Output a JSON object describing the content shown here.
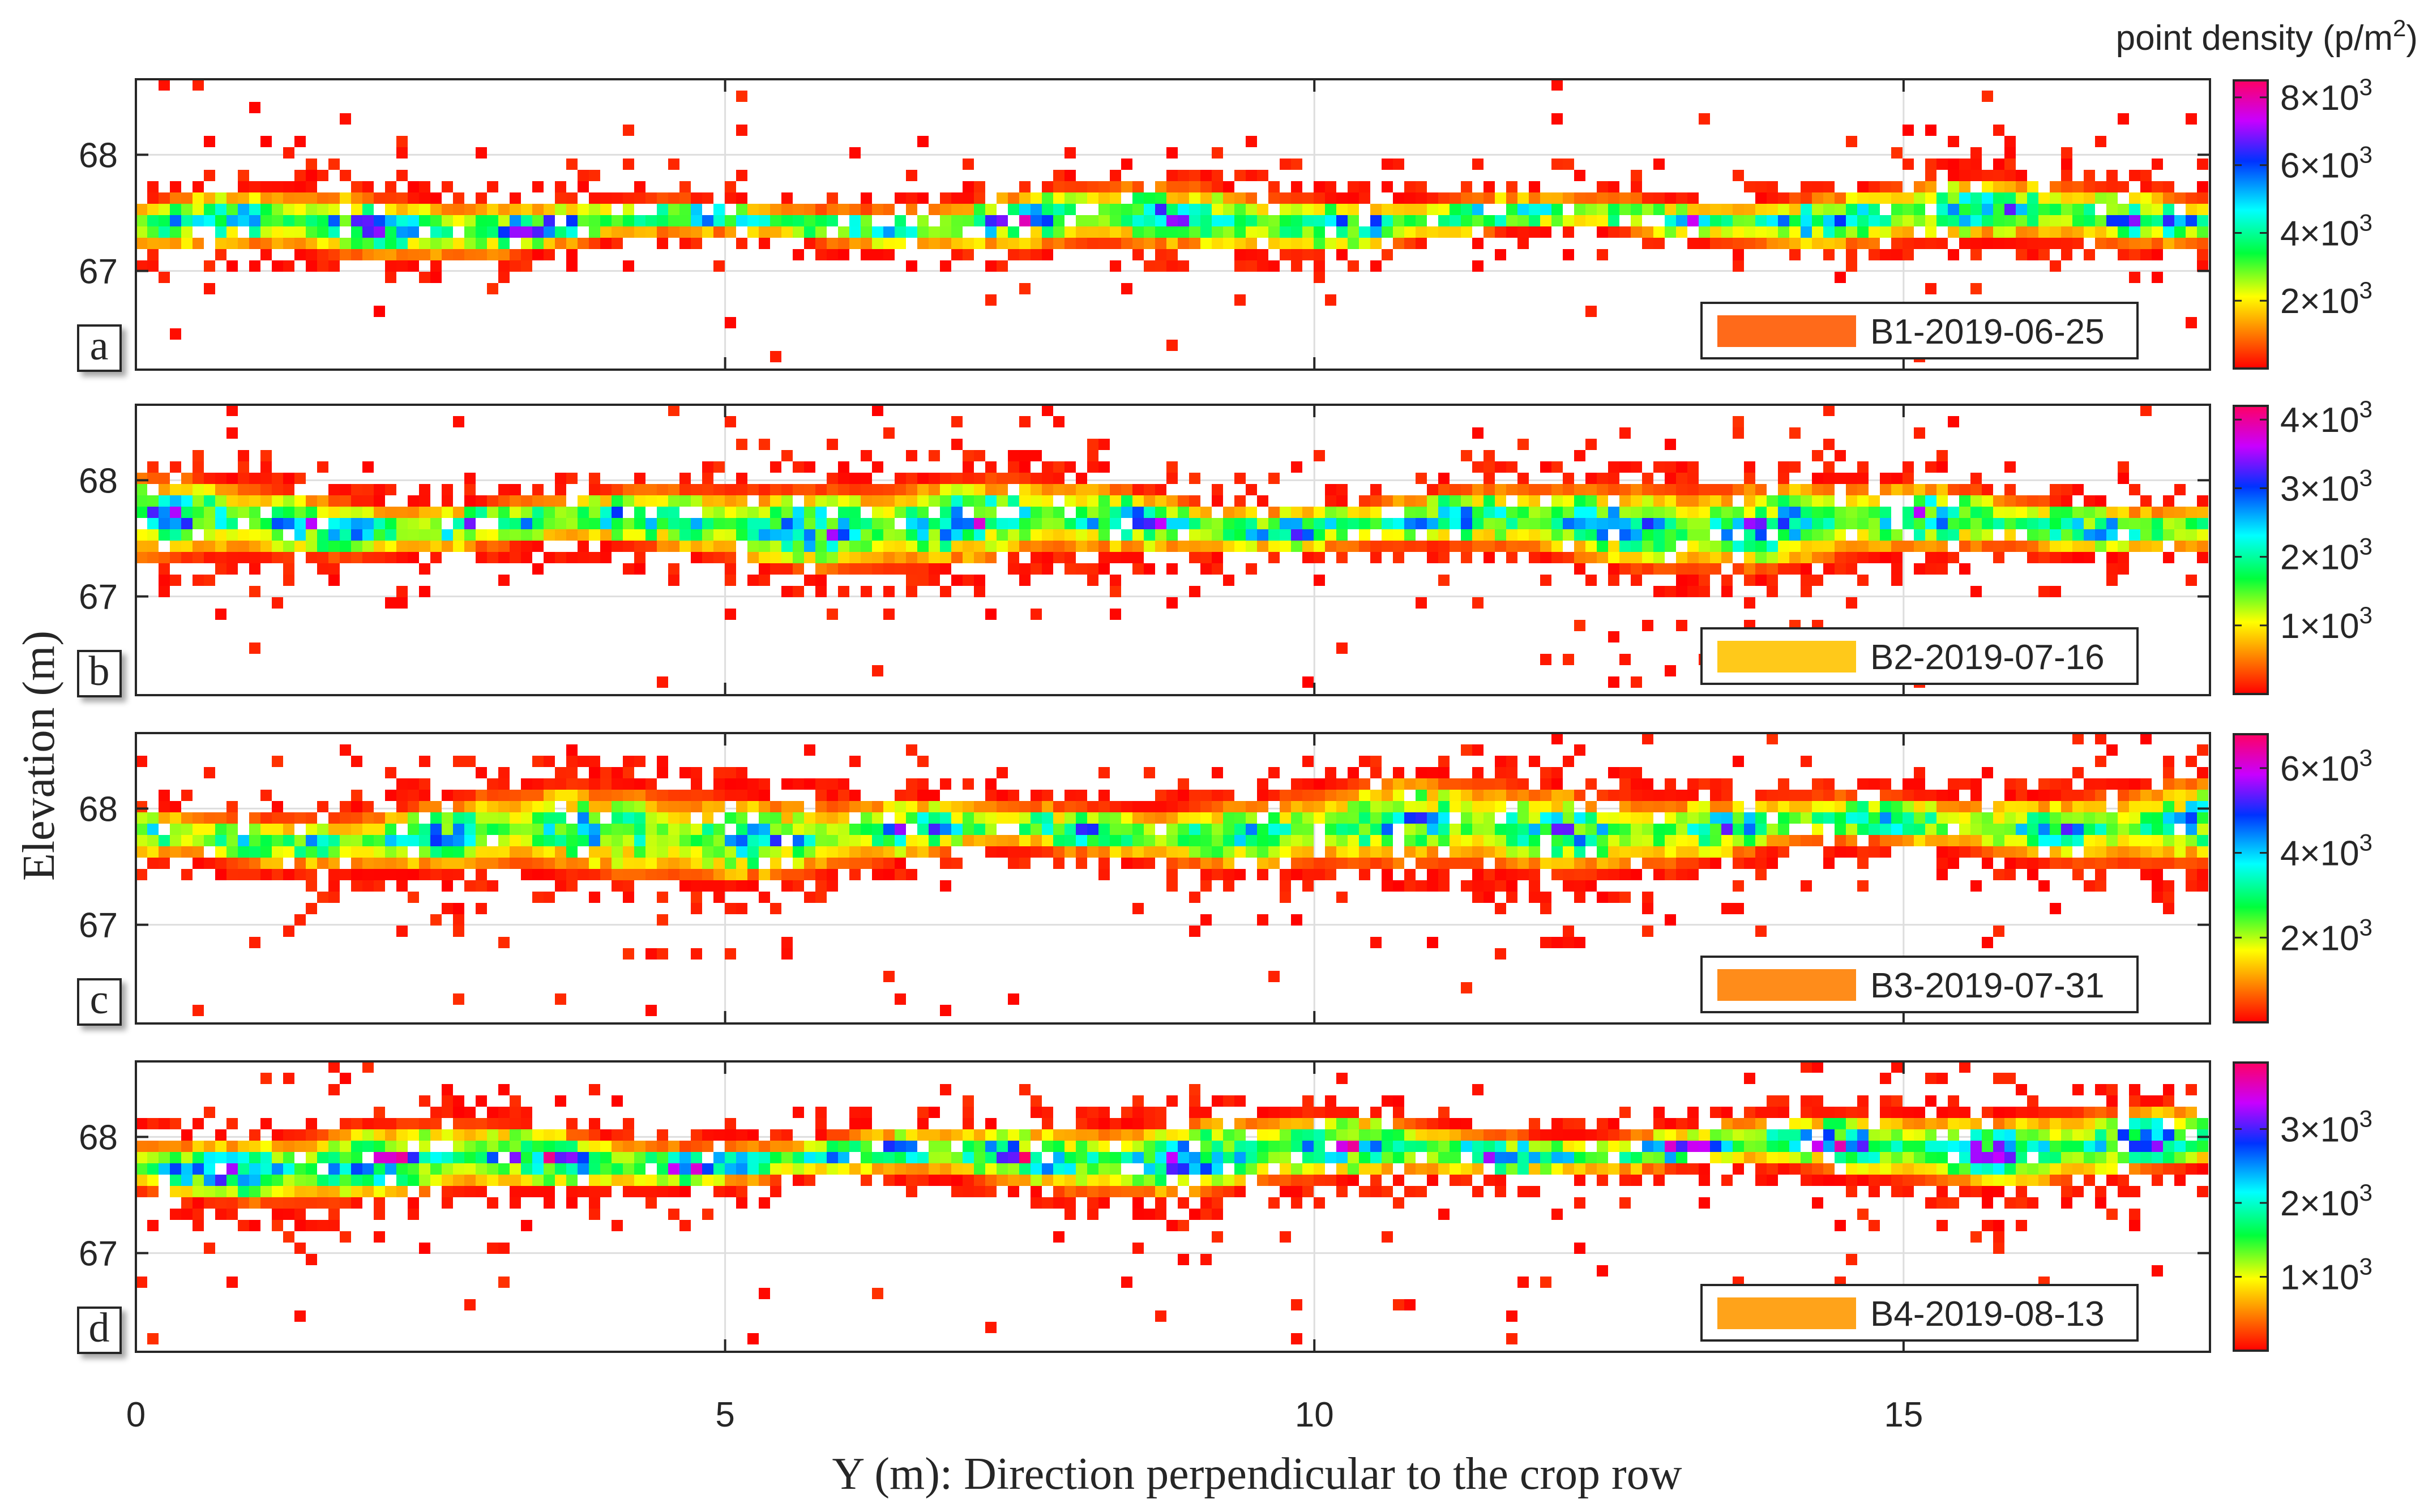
{
  "chart_data": {
    "type": "heatmap",
    "xlabel": "Y (m): Direction perpendicular to the crop row",
    "ylabel": "Elevation (m)",
    "xlim": [
      0,
      17.6
    ],
    "xticks": [
      0,
      5,
      10,
      15
    ],
    "colorbar_title": "point density (p/m²)",
    "colormap": [
      "#ff0000",
      "#ff7a00",
      "#ffff00",
      "#00ff3c",
      "#00ffff",
      "#0032ff",
      "#c800ff",
      "#ff0064"
    ],
    "panels": [
      {
        "letter": "a",
        "legend": "B1-2019-06-25",
        "legend_color": "#ff6a1a",
        "ylim": [
          66.15,
          68.65
        ],
        "yticks": [
          67,
          68
        ],
        "band_center": 67.35,
        "band_halfwidth": 0.28,
        "band_slope": 0.006,
        "vmax": 8500,
        "colorbar_ticks": [
          {
            "value": 2000,
            "base": "2×10",
            "exp": "3"
          },
          {
            "value": 4000,
            "base": "4×10",
            "exp": "3"
          },
          {
            "value": 6000,
            "base": "6×10",
            "exp": "3"
          },
          {
            "value": 8000,
            "base": "8×10",
            "exp": "3"
          }
        ],
        "peak": 0.8
      },
      {
        "letter": "b",
        "legend": "B2-2019-07-16",
        "legend_color": "#ffc91a",
        "ylim": [
          66.15,
          68.65
        ],
        "yticks": [
          67,
          68
        ],
        "band_center": 67.6,
        "band_halfwidth": 0.38,
        "band_slope": 0.0,
        "vmax": 4200,
        "colorbar_ticks": [
          {
            "value": 1000,
            "base": "1×10",
            "exp": "3"
          },
          {
            "value": 2000,
            "base": "2×10",
            "exp": "3"
          },
          {
            "value": 3000,
            "base": "3×10",
            "exp": "3"
          },
          {
            "value": 4000,
            "base": "4×10",
            "exp": "3"
          }
        ],
        "peak": 0.8
      },
      {
        "letter": "c",
        "legend": "B3-2019-07-31",
        "legend_color": "#ff8c1a",
        "ylim": [
          66.15,
          68.65
        ],
        "yticks": [
          67,
          68
        ],
        "band_center": 67.72,
        "band_halfwidth": 0.4,
        "band_slope": 0.008,
        "vmax": 6800,
        "colorbar_ticks": [
          {
            "value": 2000,
            "base": "2×10",
            "exp": "3"
          },
          {
            "value": 4000,
            "base": "4×10",
            "exp": "3"
          },
          {
            "value": 6000,
            "base": "6×10",
            "exp": "3"
          }
        ],
        "peak": 0.7
      },
      {
        "letter": "d",
        "legend": "B4-2019-08-13",
        "legend_color": "#ffa31a",
        "ylim": [
          66.15,
          68.65
        ],
        "yticks": [
          67,
          68
        ],
        "band_center": 67.72,
        "band_halfwidth": 0.32,
        "band_slope": 0.012,
        "vmax": 3900,
        "colorbar_ticks": [
          {
            "value": 1000,
            "base": "1×10",
            "exp": "3"
          },
          {
            "value": 2000,
            "base": "2×10",
            "exp": "3"
          },
          {
            "value": 3000,
            "base": "3×10",
            "exp": "3"
          }
        ],
        "peak": 0.85
      }
    ]
  }
}
